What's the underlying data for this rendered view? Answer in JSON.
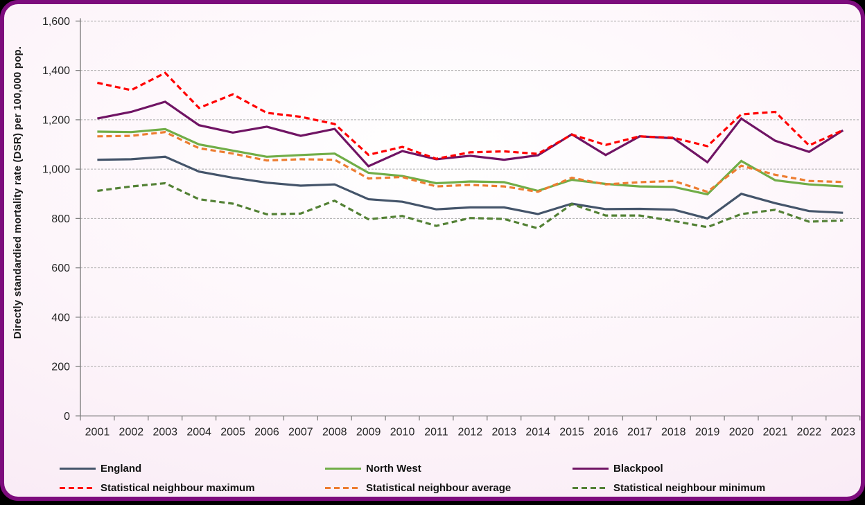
{
  "frame": {
    "border_color": "#7D0C7D",
    "background_tint": "#F7E7F3",
    "corner_color": "#000000"
  },
  "chart_data": {
    "type": "line",
    "title": "",
    "xlabel": "",
    "ylabel": "Directly standardied mortality rate (DSR) per 100,000 pop.",
    "ylim": [
      0,
      1600
    ],
    "ytick_step": 200,
    "ytick_labels": [
      "0",
      "200",
      "400",
      "600",
      "800",
      "1,000",
      "1,200",
      "1,400",
      "1,600"
    ],
    "grid": "horizontal-dashed",
    "legend_position": "bottom",
    "categories": [
      "2001",
      "2002",
      "2003",
      "2004",
      "2005",
      "2006",
      "2007",
      "2008",
      "2009",
      "2010",
      "2011",
      "2012",
      "2013",
      "2014",
      "2015",
      "2016",
      "2017",
      "2018",
      "2019",
      "2020",
      "2021",
      "2022",
      "2023"
    ],
    "series": [
      {
        "name": "England",
        "color": "#44546A",
        "style": "solid",
        "values": [
          1038,
          1040,
          1050,
          990,
          965,
          945,
          933,
          938,
          878,
          868,
          837,
          845,
          845,
          818,
          860,
          838,
          839,
          836,
          800,
          900,
          862,
          830,
          823
        ]
      },
      {
        "name": "North West",
        "color": "#70AD47",
        "style": "solid",
        "values": [
          1152,
          1150,
          1162,
          1100,
          1075,
          1050,
          1057,
          1063,
          985,
          972,
          943,
          950,
          947,
          912,
          957,
          940,
          930,
          928,
          898,
          1033,
          955,
          938,
          930
        ]
      },
      {
        "name": "Blackpool",
        "color": "#701464",
        "style": "solid",
        "values": [
          1205,
          1232,
          1273,
          1178,
          1148,
          1172,
          1135,
          1163,
          1012,
          1073,
          1040,
          1054,
          1038,
          1056,
          1141,
          1057,
          1133,
          1125,
          1028,
          1205,
          1115,
          1070,
          1157
        ]
      },
      {
        "name": "Statistical neighbour maximum",
        "color": "#FF0000",
        "style": "dashed",
        "values": [
          1350,
          1320,
          1390,
          1248,
          1303,
          1228,
          1212,
          1183,
          1058,
          1090,
          1042,
          1068,
          1072,
          1062,
          1140,
          1098,
          1133,
          1127,
          1093,
          1222,
          1232,
          1096,
          1158
        ]
      },
      {
        "name": "Statistical neighbour average",
        "color": "#ED7D31",
        "style": "dashed",
        "values": [
          1133,
          1135,
          1150,
          1085,
          1063,
          1035,
          1040,
          1038,
          962,
          968,
          930,
          936,
          930,
          908,
          965,
          938,
          947,
          952,
          908,
          1014,
          977,
          952,
          948
        ]
      },
      {
        "name": "Statistical neighbour minimum",
        "color": "#538135",
        "style": "dashed",
        "values": [
          912,
          930,
          943,
          878,
          860,
          817,
          820,
          872,
          797,
          810,
          770,
          802,
          798,
          760,
          858,
          812,
          812,
          790,
          765,
          818,
          835,
          787,
          792
        ]
      }
    ]
  },
  "axes_style": {
    "axis_color": "#808080",
    "gridline_color": "#9E9E9E",
    "tick_label_color": "#262626"
  }
}
